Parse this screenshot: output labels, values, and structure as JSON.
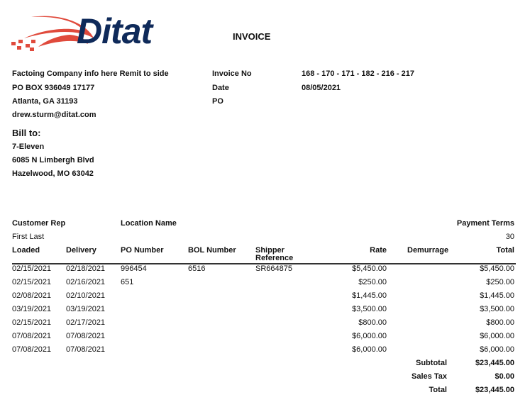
{
  "logo": {
    "text": "Ditat",
    "colors": {
      "navy": "#0f2a5a",
      "red": "#e04a3c"
    }
  },
  "title": "INVOICE",
  "remit": {
    "lines": [
      "Factoing Company info here Remit to side",
      "PO BOX 936049 17177",
      "Atlanta, GA 31193",
      "drew.sturm@ditat.com"
    ]
  },
  "invoice_meta": {
    "invoice_no_label": "Invoice No",
    "invoice_no": "168 - 170 - 171 - 182 - 216 - 217",
    "date_label": "Date",
    "date": "08/05/2021",
    "po_label": "PO",
    "po": ""
  },
  "bill_to": {
    "heading": "Bill to:",
    "lines": [
      "7-Eleven",
      "6085 N Limbergh Blvd",
      "Hazelwood, MO 63042"
    ]
  },
  "summary": {
    "customer_rep_label": "Customer Rep",
    "customer_rep": "First Last",
    "location_label": "Location Name",
    "location": "",
    "payment_terms_label": "Payment Terms",
    "payment_terms": "30"
  },
  "table": {
    "columns": [
      "Loaded",
      "Delivery",
      "PO Number",
      "BOL Number",
      "Shipper Reference",
      "Rate",
      "Demurrage",
      "Total"
    ],
    "shipper_ref_lines": [
      "Shipper",
      "Reference"
    ],
    "rows": [
      [
        "02/15/2021",
        "02/18/2021",
        "996454",
        "6516",
        "SR664875",
        "$5,450.00",
        "",
        "$5,450.00"
      ],
      [
        "02/15/2021",
        "02/16/2021",
        "651",
        "",
        "",
        "$250.00",
        "",
        "$250.00"
      ],
      [
        "02/08/2021",
        "02/10/2021",
        "",
        "",
        "",
        "$1,445.00",
        "",
        "$1,445.00"
      ],
      [
        "03/19/2021",
        "03/19/2021",
        "",
        "",
        "",
        "$3,500.00",
        "",
        "$3,500.00"
      ],
      [
        "02/15/2021",
        "02/17/2021",
        "",
        "",
        "",
        "$800.00",
        "",
        "$800.00"
      ],
      [
        "07/08/2021",
        "07/08/2021",
        "",
        "",
        "",
        "$6,000.00",
        "",
        "$6,000.00"
      ],
      [
        "07/08/2021",
        "07/08/2021",
        "",
        "",
        "",
        "$6,000.00",
        "",
        "$6,000.00"
      ]
    ]
  },
  "totals": {
    "subtotal_label": "Subtotal",
    "subtotal": "$23,445.00",
    "tax_label": "Sales Tax",
    "tax": "$0.00",
    "total_label": "Total",
    "total": "$23,445.00"
  }
}
